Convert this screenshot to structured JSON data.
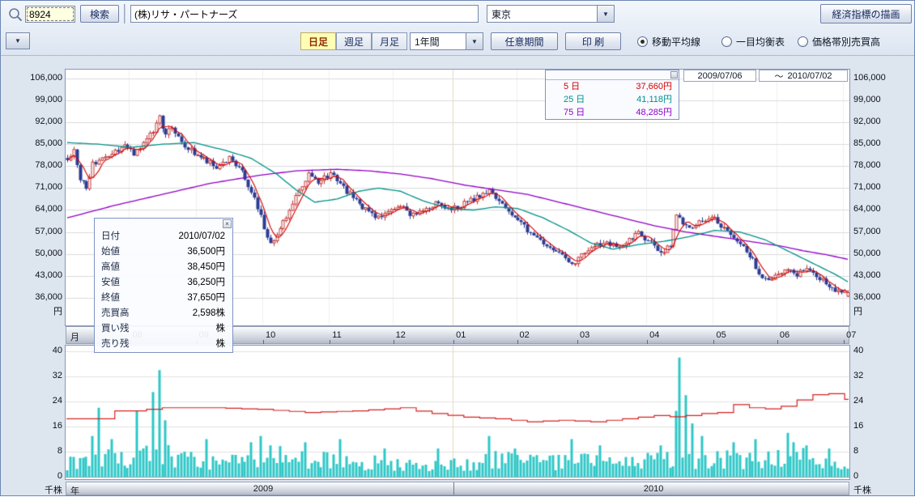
{
  "toolbar": {
    "code_value": "8924",
    "search_button": "検索",
    "company_value": "(株)リサ・パートナーズ",
    "exchange_value": "東京",
    "indicator_button": "経済指標の描画"
  },
  "controls": {
    "dropdown_arrow": "▼",
    "tabs": [
      {
        "label": "日足",
        "active": true
      },
      {
        "label": "週足",
        "active": false
      },
      {
        "label": "月足",
        "active": false
      }
    ],
    "period_value": "1年間",
    "range_button": "任意期間",
    "print_button": "印 刷",
    "radios": [
      {
        "label": "移動平均線",
        "selected": true
      },
      {
        "label": "一目均衡表",
        "selected": false
      },
      {
        "label": "価格帯別売買高",
        "selected": false
      }
    ]
  },
  "date_range": {
    "from": "2009/07/06",
    "separator": "～",
    "to": "2010/07/02"
  },
  "ma_legend": {
    "rows": [
      {
        "label": "5 日",
        "value": "37,660円",
        "color": "#d40000"
      },
      {
        "label": "25 日",
        "value": "41,118円",
        "color": "#00918a"
      },
      {
        "label": "75 日",
        "value": "48,285円",
        "color": "#9100c8"
      }
    ]
  },
  "tooltip": {
    "close_glyph": "×",
    "rows": [
      {
        "label": "日付",
        "value": "2010/07/02",
        "unit": ""
      },
      {
        "label": "始値",
        "value": "36,500",
        "unit": "円"
      },
      {
        "label": "高値",
        "value": "38,450",
        "unit": "円"
      },
      {
        "label": "安値",
        "value": "36,250",
        "unit": "円"
      },
      {
        "label": "終値",
        "value": "37,650",
        "unit": "円"
      },
      {
        "label": "売買高",
        "value": "2,598",
        "unit": "株"
      },
      {
        "label": "買い残",
        "value": "",
        "unit": "株"
      },
      {
        "label": "売り残",
        "value": "",
        "unit": "株"
      }
    ]
  },
  "icons": {
    "search": "magnifier"
  },
  "chart_data": {
    "type": "candlestick",
    "period": {
      "from": "2009/07/06",
      "to": "2010/07/02",
      "trading_days": 247
    },
    "price_axis": {
      "unit": "円",
      "plot_min": 27200,
      "plot_max": 108800,
      "ticks": [
        {
          "label": "106,000",
          "value": 106000
        },
        {
          "label": "99,000",
          "value": 99000
        },
        {
          "label": "92,000",
          "value": 92000
        },
        {
          "label": "85,000",
          "value": 85000
        },
        {
          "label": "78,000",
          "value": 78000
        },
        {
          "label": "71,000",
          "value": 71000
        },
        {
          "label": "64,000",
          "value": 64000
        },
        {
          "label": "57,000",
          "value": 57000
        },
        {
          "label": "50,000",
          "value": 50000
        },
        {
          "label": "43,000",
          "value": 43000
        },
        {
          "label": "36,000",
          "value": 36000
        }
      ]
    },
    "candle_colors": {
      "up_stroke": "#c43a3a",
      "up_fill": "#ffffff",
      "down": "#2c3c94"
    },
    "noise": 850,
    "close_anchors": [
      [
        0,
        80000
      ],
      [
        2,
        83500
      ],
      [
        4,
        73500
      ],
      [
        6,
        71500
      ],
      [
        8,
        78500
      ],
      [
        13,
        81500
      ],
      [
        18,
        84500
      ],
      [
        21,
        82000
      ],
      [
        24,
        85500
      ],
      [
        27,
        89000
      ],
      [
        29,
        93500
      ],
      [
        31,
        88000
      ],
      [
        33,
        90500
      ],
      [
        37,
        84500
      ],
      [
        42,
        80500
      ],
      [
        47,
        78000
      ],
      [
        51,
        80500
      ],
      [
        55,
        76500
      ],
      [
        57,
        71500
      ],
      [
        60,
        65000
      ],
      [
        62,
        58500
      ],
      [
        64,
        53500
      ],
      [
        66,
        56500
      ],
      [
        69,
        62000
      ],
      [
        71,
        66500
      ],
      [
        74,
        71500
      ],
      [
        76,
        76500
      ],
      [
        79,
        73000
      ],
      [
        83,
        75500
      ],
      [
        87,
        71000
      ],
      [
        90,
        68000
      ],
      [
        94,
        64000
      ],
      [
        98,
        61500
      ],
      [
        102,
        63500
      ],
      [
        106,
        65500
      ],
      [
        108,
        62500
      ],
      [
        112,
        64000
      ],
      [
        116,
        66000
      ],
      [
        121,
        64000
      ],
      [
        125,
        66000
      ],
      [
        129,
        68000
      ],
      [
        133,
        70000
      ],
      [
        135,
        67500
      ],
      [
        138,
        64500
      ],
      [
        142,
        61000
      ],
      [
        145,
        57500
      ],
      [
        149,
        54000
      ],
      [
        153,
        51500
      ],
      [
        157,
        49000
      ],
      [
        159,
        46500
      ],
      [
        162,
        49500
      ],
      [
        166,
        52500
      ],
      [
        170,
        54000
      ],
      [
        173,
        52000
      ],
      [
        177,
        54500
      ],
      [
        180,
        56500
      ],
      [
        184,
        53500
      ],
      [
        187,
        50500
      ],
      [
        190,
        52500
      ],
      [
        192,
        62500
      ],
      [
        194,
        60000
      ],
      [
        196,
        58000
      ],
      [
        199,
        60500
      ],
      [
        203,
        62000
      ],
      [
        206,
        59000
      ],
      [
        209,
        56500
      ],
      [
        212,
        53000
      ],
      [
        216,
        48000
      ],
      [
        218,
        44000
      ],
      [
        221,
        41000
      ],
      [
        223,
        43000
      ],
      [
        227,
        45000
      ],
      [
        230,
        43500
      ],
      [
        233,
        45000
      ],
      [
        237,
        42500
      ],
      [
        240,
        40000
      ],
      [
        242,
        38500
      ],
      [
        246,
        37650
      ]
    ],
    "last_candle": {
      "open": 36500,
      "high": 38450,
      "low": 36250,
      "close": 37650,
      "volume_k": 2.598
    },
    "ma_series": [
      {
        "name": "5日",
        "color": "#d40000",
        "window": 5,
        "last_value": 37660
      },
      {
        "name": "25日",
        "color": "#00918a",
        "last_value": 41118,
        "anchors": [
          [
            0,
            85500
          ],
          [
            10,
            85000
          ],
          [
            20,
            84000
          ],
          [
            30,
            85000
          ],
          [
            40,
            85500
          ],
          [
            50,
            83000
          ],
          [
            58,
            80500
          ],
          [
            66,
            75500
          ],
          [
            72,
            70500
          ],
          [
            78,
            66500
          ],
          [
            85,
            67500
          ],
          [
            92,
            70000
          ],
          [
            98,
            71000
          ],
          [
            105,
            70000
          ],
          [
            112,
            67000
          ],
          [
            120,
            64500
          ],
          [
            128,
            64000
          ],
          [
            135,
            65000
          ],
          [
            142,
            64500
          ],
          [
            150,
            61500
          ],
          [
            158,
            57500
          ],
          [
            165,
            53500
          ],
          [
            172,
            51500
          ],
          [
            180,
            53000
          ],
          [
            188,
            54000
          ],
          [
            196,
            55500
          ],
          [
            204,
            57500
          ],
          [
            212,
            57000
          ],
          [
            220,
            54500
          ],
          [
            228,
            50500
          ],
          [
            236,
            46500
          ],
          [
            242,
            43500
          ],
          [
            246,
            41118
          ]
        ]
      },
      {
        "name": "75日",
        "color": "#9100c8",
        "last_value": 48285,
        "anchors": [
          [
            0,
            61500
          ],
          [
            15,
            65500
          ],
          [
            30,
            69000
          ],
          [
            45,
            72500
          ],
          [
            60,
            75000
          ],
          [
            72,
            76500
          ],
          [
            85,
            77000
          ],
          [
            95,
            76500
          ],
          [
            105,
            75500
          ],
          [
            115,
            74000
          ],
          [
            125,
            72000
          ],
          [
            135,
            70500
          ],
          [
            145,
            69000
          ],
          [
            155,
            66500
          ],
          [
            165,
            64000
          ],
          [
            175,
            61500
          ],
          [
            185,
            59000
          ],
          [
            195,
            57000
          ],
          [
            205,
            55500
          ],
          [
            215,
            54000
          ],
          [
            225,
            52500
          ],
          [
            232,
            51000
          ],
          [
            239,
            49800
          ],
          [
            246,
            48285
          ]
        ]
      }
    ],
    "volume": {
      "unit": "千株",
      "ticks": [
        40,
        32,
        24,
        16,
        8,
        0
      ],
      "bar_color": "#2fc7c7",
      "base_anchors": [
        [
          0,
          4
        ],
        [
          10,
          6
        ],
        [
          20,
          6
        ],
        [
          30,
          7
        ],
        [
          40,
          5
        ],
        [
          55,
          4
        ],
        [
          65,
          6
        ],
        [
          80,
          5
        ],
        [
          95,
          4.5
        ],
        [
          110,
          3.5
        ],
        [
          125,
          4
        ],
        [
          135,
          5
        ],
        [
          150,
          4
        ],
        [
          165,
          4.5
        ],
        [
          180,
          4
        ],
        [
          192,
          6
        ],
        [
          205,
          5
        ],
        [
          220,
          5
        ],
        [
          232,
          5.5
        ],
        [
          246,
          3
        ]
      ],
      "spikes": [
        [
          8,
          13
        ],
        [
          10,
          22
        ],
        [
          14,
          12
        ],
        [
          22,
          21
        ],
        [
          27,
          27
        ],
        [
          29,
          34
        ],
        [
          31,
          18
        ],
        [
          44,
          12
        ],
        [
          58,
          11
        ],
        [
          61,
          13
        ],
        [
          64,
          10
        ],
        [
          75,
          11
        ],
        [
          86,
          12
        ],
        [
          100,
          9
        ],
        [
          117,
          9
        ],
        [
          133,
          13
        ],
        [
          141,
          9
        ],
        [
          159,
          12
        ],
        [
          168,
          10
        ],
        [
          187,
          10
        ],
        [
          192,
          21
        ],
        [
          193,
          38
        ],
        [
          195,
          26
        ],
        [
          197,
          17
        ],
        [
          200,
          13
        ],
        [
          210,
          11
        ],
        [
          217,
          12
        ],
        [
          227,
          14
        ],
        [
          229,
          11
        ],
        [
          233,
          10
        ],
        [
          240,
          9
        ]
      ]
    },
    "credit_line": {
      "color": "#d42222",
      "step_days": 5,
      "anchors": [
        [
          0,
          18.5
        ],
        [
          12,
          18.5
        ],
        [
          15,
          21
        ],
        [
          20,
          21
        ],
        [
          30,
          22
        ],
        [
          45,
          22
        ],
        [
          60,
          21.5
        ],
        [
          75,
          20.5
        ],
        [
          90,
          21
        ],
        [
          105,
          22
        ],
        [
          112,
          20.5
        ],
        [
          125,
          19
        ],
        [
          135,
          18.5
        ],
        [
          145,
          17.5
        ],
        [
          155,
          18
        ],
        [
          165,
          17.5
        ],
        [
          175,
          18.5
        ],
        [
          185,
          19.5
        ],
        [
          192,
          19
        ],
        [
          198,
          20
        ],
        [
          205,
          20.5
        ],
        [
          210,
          23
        ],
        [
          215,
          22
        ],
        [
          222,
          21.5
        ],
        [
          228,
          23.5
        ],
        [
          233,
          26
        ],
        [
          240,
          26.5
        ],
        [
          243,
          25
        ],
        [
          246,
          24.5
        ]
      ]
    },
    "month_axis": {
      "row_label": "月",
      "ticks": [
        {
          "label": "08",
          "day": 20
        },
        {
          "label": "09",
          "day": 41
        },
        {
          "label": "10",
          "day": 62
        },
        {
          "label": "11",
          "day": 83
        },
        {
          "label": "12",
          "day": 103
        },
        {
          "label": "01",
          "day": 122
        },
        {
          "label": "02",
          "day": 142
        },
        {
          "label": "03",
          "day": 161
        },
        {
          "label": "04",
          "day": 183
        },
        {
          "label": "05",
          "day": 204
        },
        {
          "label": "06",
          "day": 224
        },
        {
          "label": "07",
          "day": 245
        }
      ]
    },
    "year_axis": {
      "row_label": "年",
      "ticks": [
        {
          "label": "2009",
          "day": 61
        },
        {
          "label": "2010",
          "day": 184
        }
      ]
    },
    "year_boundary_day": 122
  }
}
